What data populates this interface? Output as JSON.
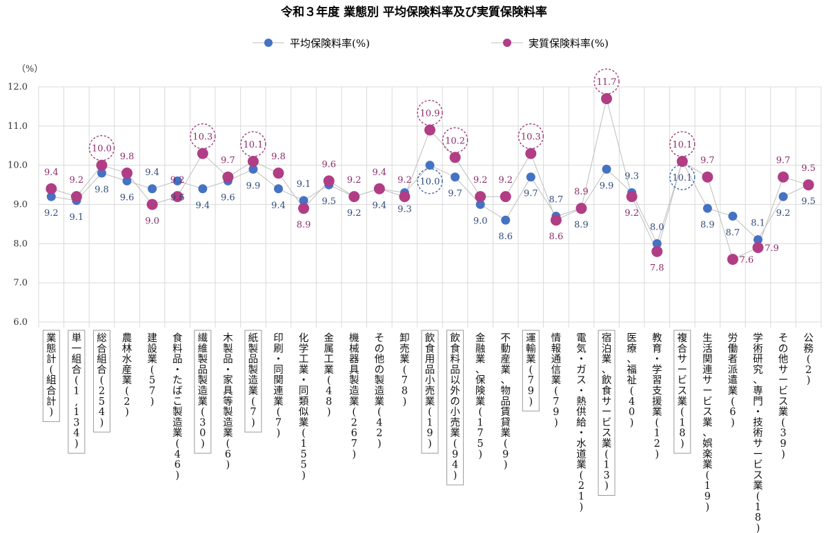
{
  "chart_data": {
    "type": "line",
    "title": "令和３年度 業態別 平均保険料率及び実質保険料率",
    "ylabel": "（%）",
    "ylim": [
      6.0,
      12.0
    ],
    "yticks": [
      "6.0",
      "7.0",
      "8.0",
      "9.0",
      "10.0",
      "11.0",
      "12.0"
    ],
    "legend_position": "top-center",
    "colors": {
      "avg": "#4472c4",
      "real": "#b13d85",
      "highlight_circle_real": "#9c3a78",
      "highlight_circle_avg": "#3b63a8",
      "grid": "#d9d9d9",
      "line": "#bdbdbd"
    },
    "categories": [
      "業態計(組合計)",
      "単一組合(1,134)",
      "総合組合(254)",
      "農林水産業(2)",
      "建設業(57)",
      "食料品・たばこ製造業(46)",
      "繊維製品製造業(30)",
      "木製品・家具等製造業(6)",
      "紙製品製造業(7)",
      "印刷・同関連業(7)",
      "化学工業・同類似業(155)",
      "金属工業(48)",
      "機械器具製造業(267)",
      "その他の製造業(42)",
      "卸売業(78)",
      "飲食用品小売業(19)",
      "飲食料品以外の小売業(94)",
      "金融業、保険業(175)",
      "不動産業、物品賃貸業(9)",
      "運輸業(79)",
      "情報通信業(79)",
      "電気・ガス・熱供給・水道業(21)",
      "宿泊業、飲食サービス業(13)",
      "医療、福祉(40)",
      "教育・学習支援業(12)",
      "複合サービス業(18)",
      "生活関連サービス業、娯楽業(19)",
      "労働者派遣業(6)",
      "学術研究、専門・技術サービス業(18)",
      "その他サービス業(39)",
      "公務(2)"
    ],
    "boxed_categories": [
      0,
      1,
      2,
      6,
      8,
      15,
      16,
      19,
      22,
      25
    ],
    "series": [
      {
        "name": "平均保険料率(%)",
        "values": [
          9.2,
          9.1,
          9.8,
          9.6,
          9.4,
          9.6,
          9.4,
          9.6,
          9.9,
          9.4,
          9.1,
          9.5,
          9.2,
          9.4,
          9.3,
          10.0,
          9.7,
          9.0,
          8.6,
          9.7,
          8.7,
          8.9,
          9.9,
          9.3,
          8.0,
          10.1,
          8.9,
          8.7,
          8.1,
          9.2,
          9.5
        ],
        "labels": [
          "9.2",
          "9.1",
          "9.8",
          "9.6",
          "9.4",
          "9.6",
          "9.4",
          "9.6",
          "9.9",
          "9.4",
          "9.1",
          "9.5",
          "9.2",
          "9.4",
          "9.3",
          "10.0",
          "9.7",
          "9.0",
          "8.6",
          "9.7",
          "8.7",
          "8.9",
          "9.9",
          "9.3",
          "8.0",
          "10.1",
          "8.9",
          "8.7",
          "8.1",
          "9.2",
          "9.5"
        ],
        "label_pos": [
          "below",
          "below",
          "below",
          "below",
          "above",
          "below",
          "below",
          "below",
          "below",
          "below",
          "above",
          "below",
          "below",
          "below",
          "below",
          "below",
          "below",
          "below",
          "below",
          "below",
          "above",
          "below",
          "below",
          "above",
          "above",
          "below",
          "below",
          "below",
          "above",
          "below",
          "below"
        ],
        "circled": [
          15,
          25
        ]
      },
      {
        "name": "実質保険料率(%)",
        "values": [
          9.4,
          9.2,
          10.0,
          9.8,
          9.0,
          9.2,
          10.3,
          9.7,
          10.1,
          9.8,
          8.9,
          9.6,
          9.2,
          9.4,
          9.2,
          10.9,
          10.2,
          9.2,
          9.2,
          10.3,
          8.6,
          8.9,
          11.7,
          9.2,
          7.8,
          10.1,
          9.7,
          7.6,
          7.9,
          9.7,
          9.5
        ],
        "labels": [
          "9.4",
          "9.2",
          "10.0",
          "9.8",
          "9.0",
          "9.2",
          "10.3",
          "9.7",
          "10.1",
          "9.8",
          "8.9",
          "9.6",
          "9.2",
          "9.4",
          "9.2",
          "10.9",
          "10.2",
          "9.2",
          "9.2",
          "10.3",
          "8.6",
          "8.9",
          "11.7",
          "9.2",
          "7.8",
          "10.1",
          "9.7",
          "7.6",
          "7.9",
          "9.7",
          "9.5"
        ],
        "label_pos": [
          "above",
          "above",
          "above",
          "above",
          "below",
          "above",
          "above",
          "above",
          "above",
          "above",
          "below",
          "above",
          "above",
          "above",
          "above",
          "above",
          "above",
          "above",
          "above",
          "above",
          "below",
          "above",
          "above",
          "below",
          "below",
          "above",
          "above",
          "right",
          "right",
          "above",
          "above"
        ],
        "circled": [
          2,
          6,
          8,
          15,
          16,
          19,
          22,
          25
        ]
      }
    ]
  }
}
